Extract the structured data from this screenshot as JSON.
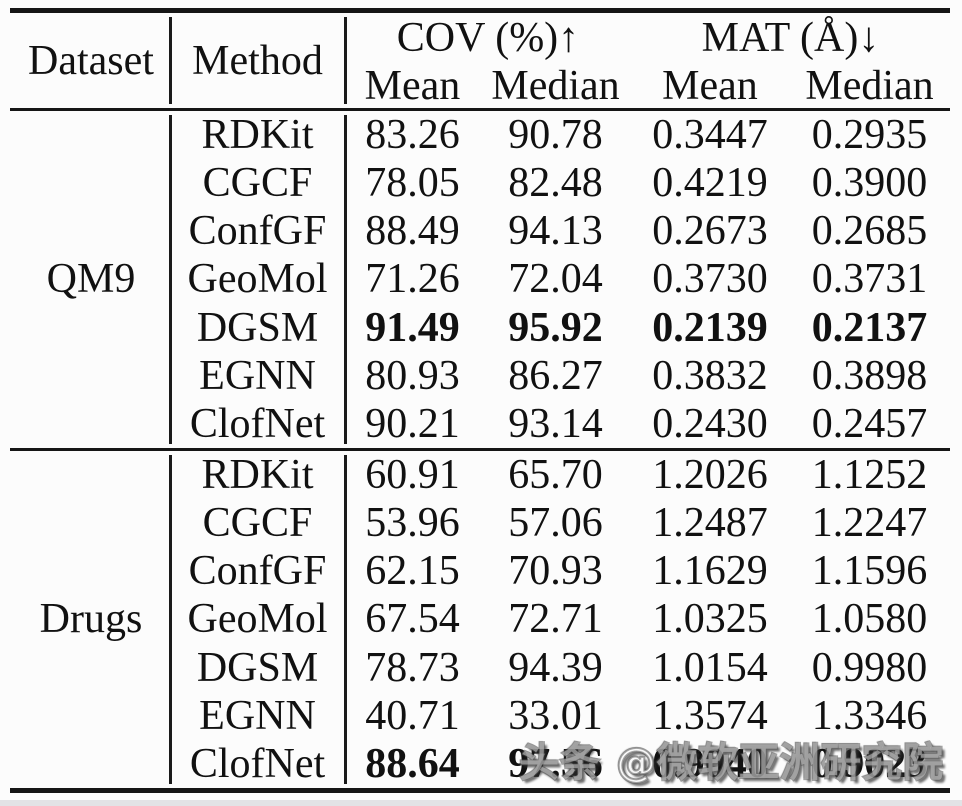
{
  "colors": {
    "background": "#fcfcfc",
    "rule": "#161616",
    "text": "#111111",
    "watermark_face": "#ffffff",
    "watermark_outline": "#4b4b4b"
  },
  "table": {
    "header": {
      "dataset": "Dataset",
      "method": "Method",
      "cov_group": "COV (%)↑",
      "mat_group": "MAT (Å)↓",
      "subheaders": [
        "Mean",
        "Median",
        "Mean",
        "Median"
      ]
    },
    "sections": [
      {
        "dataset": "QM9",
        "rows": [
          {
            "method": "RDKit",
            "cov_mean": "83.26",
            "cov_median": "90.78",
            "mat_mean": "0.3447",
            "mat_median": "0.2935",
            "bold": false
          },
          {
            "method": "CGCF",
            "cov_mean": "78.05",
            "cov_median": "82.48",
            "mat_mean": "0.4219",
            "mat_median": "0.3900",
            "bold": false
          },
          {
            "method": "ConfGF",
            "cov_mean": "88.49",
            "cov_median": "94.13",
            "mat_mean": "0.2673",
            "mat_median": "0.2685",
            "bold": false
          },
          {
            "method": "GeoMol",
            "cov_mean": "71.26",
            "cov_median": "72.04",
            "mat_mean": "0.3730",
            "mat_median": "0.3731",
            "bold": false
          },
          {
            "method": "DGSM",
            "cov_mean": "91.49",
            "cov_median": "95.92",
            "mat_mean": "0.2139",
            "mat_median": "0.2137",
            "bold": true
          },
          {
            "method": "EGNN",
            "cov_mean": "80.93",
            "cov_median": "86.27",
            "mat_mean": "0.3832",
            "mat_median": "0.3898",
            "bold": false
          },
          {
            "method": "ClofNet",
            "cov_mean": "90.21",
            "cov_median": "93.14",
            "mat_mean": "0.2430",
            "mat_median": "0.2457",
            "bold": false
          }
        ]
      },
      {
        "dataset": "Drugs",
        "rows": [
          {
            "method": "RDKit",
            "cov_mean": "60.91",
            "cov_median": "65.70",
            "mat_mean": "1.2026",
            "mat_median": "1.1252",
            "bold": false
          },
          {
            "method": "CGCF",
            "cov_mean": "53.96",
            "cov_median": "57.06",
            "mat_mean": "1.2487",
            "mat_median": "1.2247",
            "bold": false
          },
          {
            "method": "ConfGF",
            "cov_mean": "62.15",
            "cov_median": "70.93",
            "mat_mean": "1.1629",
            "mat_median": "1.1596",
            "bold": false
          },
          {
            "method": "GeoMol",
            "cov_mean": "67.54",
            "cov_median": "72.71",
            "mat_mean": "1.0325",
            "mat_median": "1.0580",
            "bold": false
          },
          {
            "method": "DGSM",
            "cov_mean": "78.73",
            "cov_median": "94.39",
            "mat_mean": "1.0154",
            "mat_median": "0.9980",
            "bold": false
          },
          {
            "method": "EGNN",
            "cov_mean": "40.71",
            "cov_median": "33.01",
            "mat_mean": "1.3574",
            "mat_median": "1.3346",
            "bold": false
          },
          {
            "method": "ClofNet",
            "cov_mean": "88.64",
            "cov_median": "97.56",
            "mat_mean": "0.9040",
            "mat_median": "0.9023",
            "bold": true
          }
        ]
      }
    ]
  },
  "watermark": {
    "text": "头条 @微软亚洲研究院"
  }
}
